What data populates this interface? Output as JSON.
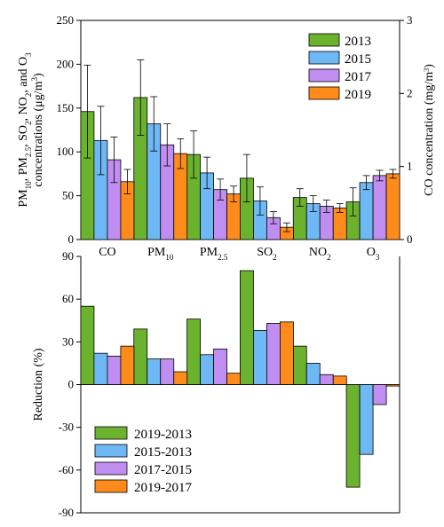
{
  "chart_data": [
    {
      "type": "bar",
      "panel": "top",
      "categories": [
        "CO",
        "PM10",
        "PM2.5",
        "SO2",
        "NO2",
        "O3"
      ],
      "category_labels": [
        {
          "base": "CO",
          "sub": ""
        },
        {
          "base": "PM",
          "sub": "10"
        },
        {
          "base": "PM",
          "sub": "2.5"
        },
        {
          "base": "SO",
          "sub": "2"
        },
        {
          "base": "NO",
          "sub": "2"
        },
        {
          "base": "O",
          "sub": "3"
        }
      ],
      "ylabel": "PM10, PM2.5, SO2, NO2, and O3 concentrations (μg/m3)",
      "ylabel_parts": {
        "line1": [
          [
            "PM",
            ""
          ],
          [
            "10",
            "sub"
          ],
          [
            ", PM",
            ""
          ],
          [
            "2.5",
            "sub"
          ],
          [
            ", SO",
            ""
          ],
          [
            "2",
            "sub"
          ],
          [
            ", NO",
            ""
          ],
          [
            "2",
            "sub"
          ],
          [
            ", and O",
            ""
          ],
          [
            "3",
            "sub"
          ]
        ],
        "line2": [
          [
            "concentrations (μg/m",
            ""
          ],
          [
            "3",
            "sup"
          ],
          [
            ")",
            ""
          ]
        ]
      },
      "ylabel_right": "CO concentration (mg/m3)",
      "ylabel_right_parts": [
        [
          "CO concentration (mg/m",
          ""
        ],
        [
          "3",
          "sup"
        ],
        [
          ")",
          ""
        ]
      ],
      "ylim": [
        0,
        250
      ],
      "yticks": [
        "0",
        "50",
        "100",
        "150",
        "200",
        "250"
      ],
      "ylim_right": [
        0,
        3
      ],
      "yticks_right": [
        "0",
        "1",
        "2",
        "3"
      ],
      "legend_position": "top-right",
      "series": [
        {
          "name": "2013",
          "color": "#6bb32e",
          "values": [
            146,
            162,
            97,
            70,
            48,
            43
          ],
          "errors": [
            53,
            43,
            27,
            27,
            10,
            16
          ]
        },
        {
          "name": "2015",
          "color": "#6eb9f5",
          "values": [
            113,
            132,
            76,
            44,
            41,
            65
          ],
          "errors": [
            39,
            31,
            18,
            16,
            9,
            8
          ]
        },
        {
          "name": "2017",
          "color": "#c08ef0",
          "values": [
            91,
            108,
            57,
            25,
            38,
            73
          ],
          "errors": [
            26,
            24,
            12,
            7,
            7,
            6
          ]
        },
        {
          "name": "2019",
          "color": "#ff8c1a",
          "values": [
            66,
            98,
            52,
            14,
            36,
            75
          ],
          "errors": [
            14,
            17,
            9,
            5,
            5,
            5
          ]
        }
      ]
    },
    {
      "type": "bar",
      "panel": "bottom",
      "categories": [
        "CO",
        "PM10",
        "PM2.5",
        "SO2",
        "NO2",
        "O3"
      ],
      "ylabel": "Reduction (%)",
      "ylim": [
        -90,
        90
      ],
      "yticks": [
        "90",
        "60",
        "30",
        "0",
        "-30",
        "-60",
        "-90"
      ],
      "legend_position": "bottom-left",
      "series": [
        {
          "name": "2019-2013",
          "color": "#6bb32e",
          "values": [
            55,
            39,
            46,
            80,
            27,
            -72
          ]
        },
        {
          "name": "2015-2013",
          "color": "#6eb9f5",
          "values": [
            22,
            18,
            21,
            38,
            15,
            -49
          ]
        },
        {
          "name": "2017-2015",
          "color": "#c08ef0",
          "values": [
            20,
            18,
            25,
            43,
            7,
            -14
          ]
        },
        {
          "name": "2019-2017",
          "color": "#ff8c1a",
          "values": [
            27,
            9,
            8,
            44,
            6,
            -1
          ]
        }
      ]
    }
  ]
}
